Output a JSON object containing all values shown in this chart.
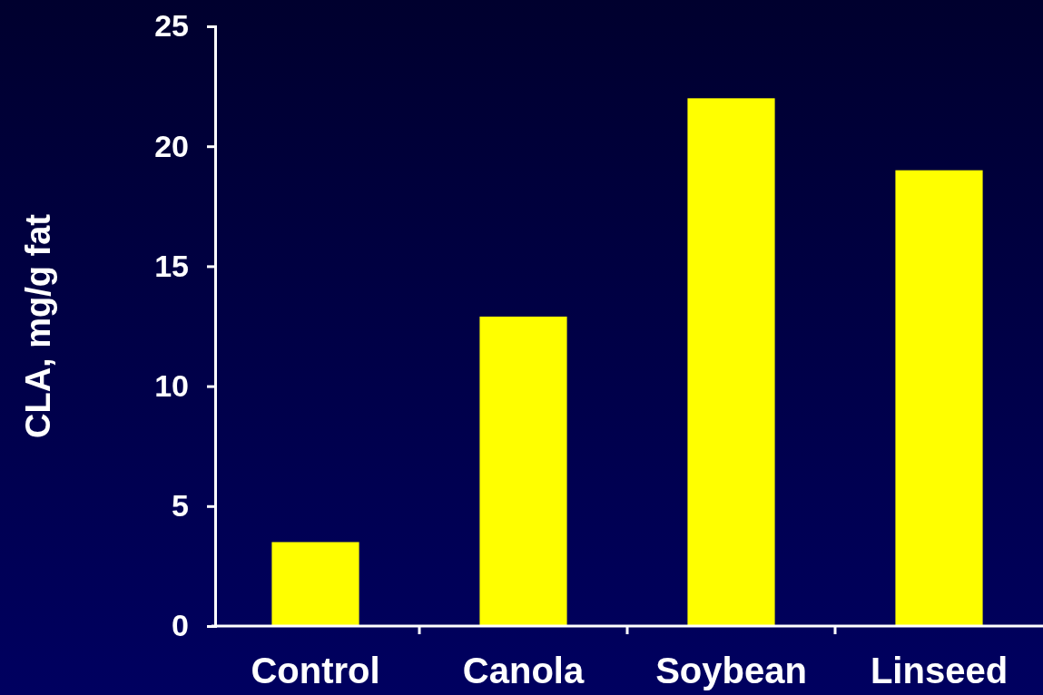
{
  "chart_data": {
    "type": "bar",
    "ylabel": "CLA, mg/g fat",
    "categories": [
      "Control",
      "Canola",
      "Soybean",
      "Linseed"
    ],
    "values": [
      3.5,
      12.9,
      22,
      19
    ],
    "color": "#ffff00",
    "ylim": [
      0,
      25
    ],
    "yticks": [
      0,
      5,
      10,
      15,
      20,
      25
    ],
    "grid": false
  }
}
